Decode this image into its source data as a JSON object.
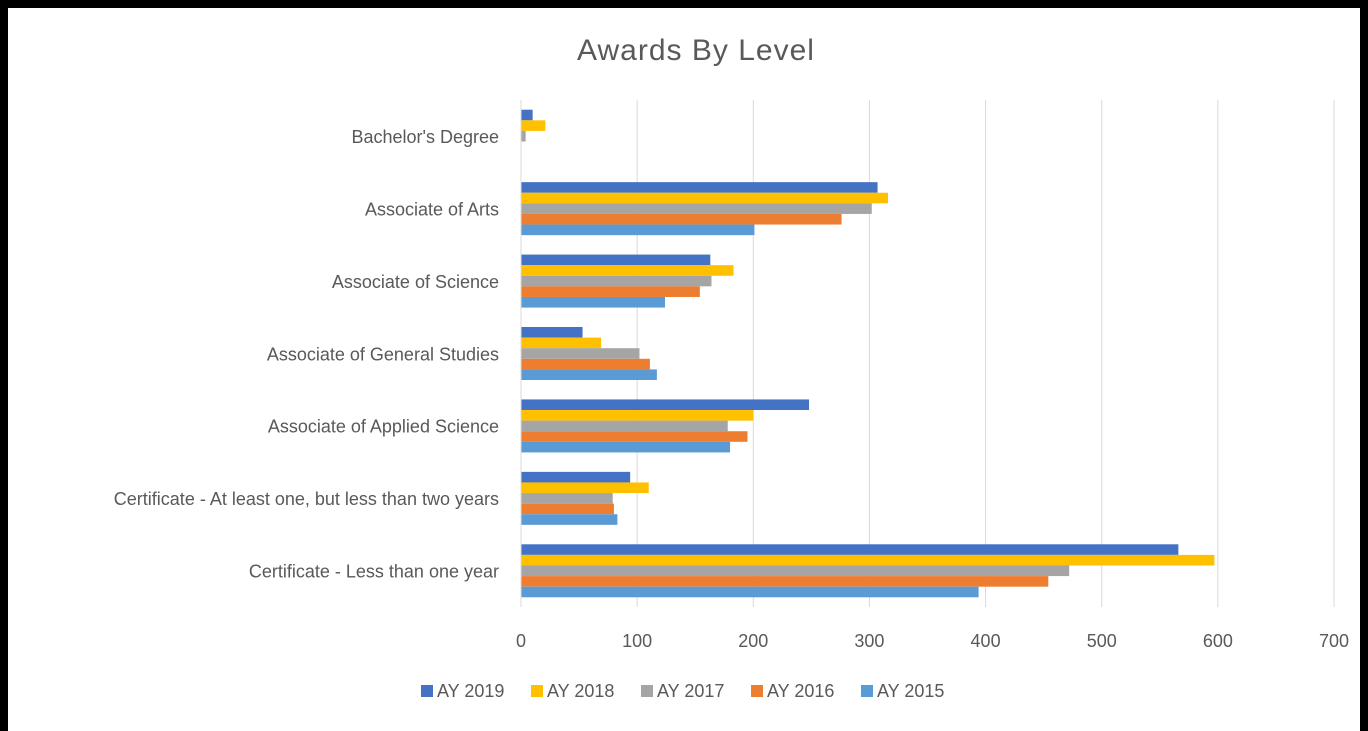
{
  "chart_data": {
    "type": "hbar",
    "title": "Awards By Level",
    "categories": [
      "Bachelor's Degree",
      "Associate of Arts",
      "Associate of Science",
      "Associate of General Studies",
      "Associate of Applied Science",
      "Certificate - At least one, but less than two years",
      "Certificate - Less than one year"
    ],
    "series": [
      {
        "name": "AY 2019",
        "color": "#4472c4",
        "values": [
          10,
          307,
          163,
          53,
          248,
          94,
          566
        ]
      },
      {
        "name": "AY 2018",
        "color": "#ffc000",
        "values": [
          21,
          316,
          183,
          69,
          200,
          110,
          597
        ]
      },
      {
        "name": "AY 2017",
        "color": "#a5a5a5",
        "values": [
          4,
          302,
          164,
          102,
          178,
          79,
          472
        ]
      },
      {
        "name": "AY 2016",
        "color": "#ed7d31",
        "values": [
          0,
          276,
          154,
          111,
          195,
          80,
          454
        ]
      },
      {
        "name": "AY 2015",
        "color": "#5b9bd5",
        "values": [
          0,
          201,
          124,
          117,
          180,
          83,
          394
        ]
      }
    ],
    "xlim": [
      0,
      700
    ],
    "xticks": [
      0,
      100,
      200,
      300,
      400,
      500,
      600,
      700
    ],
    "grid": true,
    "legend": "bottom"
  }
}
